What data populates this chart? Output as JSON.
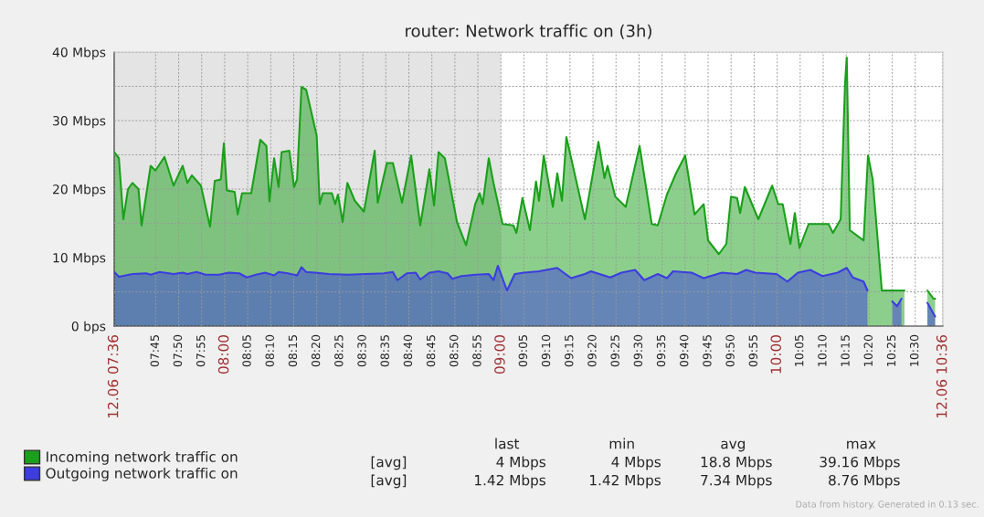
{
  "chart_data": {
    "type": "area",
    "title": "router: Network traffic on (3h)",
    "xlim": [
      7.6,
      10.6
    ],
    "ylim": [
      0,
      40
    ],
    "xticks": [
      {
        "value": 7.6,
        "label": "12.06 07:36"
      },
      {
        "value": 7.75,
        "label": "07:45"
      },
      {
        "value": 7.8333,
        "label": "07:50"
      },
      {
        "value": 7.9167,
        "label": "07:55"
      },
      {
        "value": 8,
        "label": "08:00"
      },
      {
        "value": 8.0833,
        "label": "08:05"
      },
      {
        "value": 8.1667,
        "label": "08:10"
      },
      {
        "value": 8.25,
        "label": "08:15"
      },
      {
        "value": 8.3333,
        "label": "08:20"
      },
      {
        "value": 8.4167,
        "label": "08:25"
      },
      {
        "value": 8.5,
        "label": "08:30"
      },
      {
        "value": 8.5833,
        "label": "08:35"
      },
      {
        "value": 8.6667,
        "label": "08:40"
      },
      {
        "value": 8.75,
        "label": "08:45"
      },
      {
        "value": 8.8333,
        "label": "08:50"
      },
      {
        "value": 8.9167,
        "label": "08:55"
      },
      {
        "value": 9,
        "label": "09:00"
      },
      {
        "value": 9.0833,
        "label": "09:05"
      },
      {
        "value": 9.1667,
        "label": "09:10"
      },
      {
        "value": 9.25,
        "label": "09:15"
      },
      {
        "value": 9.3333,
        "label": "09:20"
      },
      {
        "value": 9.4167,
        "label": "09:25"
      },
      {
        "value": 9.5,
        "label": "09:30"
      },
      {
        "value": 9.5833,
        "label": "09:35"
      },
      {
        "value": 9.6667,
        "label": "09:40"
      },
      {
        "value": 9.75,
        "label": "09:45"
      },
      {
        "value": 9.8333,
        "label": "09:50"
      },
      {
        "value": 9.9167,
        "label": "09:55"
      },
      {
        "value": 10,
        "label": "10:00"
      },
      {
        "value": 10.0833,
        "label": "10:05"
      },
      {
        "value": 10.1667,
        "label": "10:10"
      },
      {
        "value": 10.25,
        "label": "10:15"
      },
      {
        "value": 10.3333,
        "label": "10:20"
      },
      {
        "value": 10.4167,
        "label": "10:25"
      },
      {
        "value": 10.5,
        "label": "10:30"
      },
      {
        "value": 10.6,
        "label": "12.06 10:36"
      }
    ],
    "yticks": [
      {
        "value": 0,
        "label": "0 bps"
      },
      {
        "value": 5,
        "label": null
      },
      {
        "value": 10,
        "label": "10 Mbps"
      },
      {
        "value": 15,
        "label": null
      },
      {
        "value": 20,
        "label": "20 Mbps"
      },
      {
        "value": 25,
        "label": null
      },
      {
        "value": 30,
        "label": "30 Mbps"
      },
      {
        "value": 35,
        "label": null
      },
      {
        "value": 40,
        "label": "40 Mbps"
      }
    ],
    "grid": true,
    "legend": "bottom",
    "bands": [
      {
        "axis": "x",
        "from": 7.6,
        "to": 9.0,
        "color": "#e4e4e4"
      }
    ],
    "series": [
      {
        "name": "Incoming network traffic on",
        "color": "#1aa01a",
        "x": [
          7.6,
          7.617,
          7.633,
          7.65,
          7.666,
          7.688,
          7.699,
          7.732,
          7.749,
          7.782,
          7.815,
          7.848,
          7.865,
          7.881,
          7.914,
          7.947,
          7.964,
          7.986,
          7.997,
          8.008,
          8.036,
          8.047,
          8.063,
          8.096,
          8.129,
          8.151,
          8.162,
          8.179,
          8.195,
          8.206,
          8.234,
          8.251,
          8.262,
          8.278,
          8.295,
          8.333,
          8.344,
          8.355,
          8.388,
          8.4,
          8.41,
          8.427,
          8.444,
          8.471,
          8.504,
          8.543,
          8.554,
          8.587,
          8.609,
          8.642,
          8.675,
          8.708,
          8.741,
          8.758,
          8.774,
          8.797,
          8.841,
          8.874,
          8.907,
          8.923,
          8.934,
          8.956,
          8.973,
          9.006,
          9.045,
          9.056,
          9.078,
          9.105,
          9.127,
          9.138,
          9.155,
          9.188,
          9.204,
          9.221,
          9.237,
          9.304,
          9.353,
          9.375,
          9.386,
          9.414,
          9.452,
          9.502,
          9.546,
          9.568,
          9.601,
          9.634,
          9.667,
          9.701,
          9.734,
          9.75,
          9.789,
          9.816,
          9.833,
          9.855,
          9.866,
          9.883,
          9.932,
          9.982,
          10.004,
          10.02,
          10.048,
          10.064,
          10.081,
          10.114,
          10.186,
          10.202,
          10.23,
          10.246,
          10.252,
          10.263,
          10.313,
          10.329,
          10.346,
          10.379,
          10.461,
          10.5,
          10.544,
          10.566,
          10.572
        ],
        "values": [
          25.4,
          24.5,
          15.6,
          20.0,
          20.9,
          20.0,
          14.7,
          23.4,
          22.7,
          24.7,
          20.5,
          23.4,
          20.9,
          22.0,
          20.5,
          14.5,
          21.2,
          21.4,
          26.7,
          19.8,
          19.6,
          16.3,
          19.4,
          19.4,
          27.2,
          26.3,
          18.2,
          24.5,
          20.3,
          25.4,
          25.6,
          20.3,
          21.4,
          34.9,
          34.5,
          27.8,
          17.8,
          19.4,
          19.4,
          17.8,
          19.2,
          15.2,
          20.9,
          18.3,
          16.7,
          25.6,
          18.0,
          23.8,
          23.8,
          18.0,
          24.9,
          14.7,
          22.9,
          17.6,
          25.4,
          24.5,
          15.2,
          11.8,
          17.8,
          19.4,
          17.8,
          24.5,
          20.9,
          14.9,
          14.7,
          13.6,
          18.7,
          14.0,
          21.1,
          18.3,
          24.9,
          17.4,
          22.3,
          18.3,
          27.6,
          15.6,
          26.9,
          21.6,
          23.4,
          18.9,
          17.4,
          26.3,
          14.9,
          14.7,
          19.2,
          22.3,
          24.9,
          16.3,
          17.8,
          12.5,
          10.5,
          12.0,
          18.9,
          18.7,
          16.5,
          20.3,
          15.6,
          20.5,
          17.8,
          17.8,
          12.0,
          16.5,
          11.4,
          14.9,
          14.9,
          13.6,
          15.6,
          35.6,
          39.2,
          14.0,
          12.5,
          24.9,
          21.4,
          5.2,
          5.2,
          null,
          5.2,
          4.0,
          4.0
        ]
      },
      {
        "name": "Outgoing network traffic on",
        "color": "#3c3ce0",
        "x": [
          7.6,
          7.617,
          7.666,
          7.716,
          7.732,
          7.765,
          7.815,
          7.848,
          7.865,
          7.898,
          7.931,
          7.98,
          8.014,
          8.053,
          8.08,
          8.113,
          8.146,
          8.179,
          8.195,
          8.229,
          8.262,
          8.278,
          8.295,
          8.328,
          8.377,
          8.444,
          8.51,
          8.576,
          8.609,
          8.625,
          8.659,
          8.692,
          8.708,
          8.741,
          8.774,
          8.807,
          8.824,
          8.857,
          8.907,
          8.956,
          8.973,
          8.989,
          9.022,
          9.05,
          9.083,
          9.138,
          9.204,
          9.254,
          9.304,
          9.326,
          9.396,
          9.436,
          9.486,
          9.519,
          9.568,
          9.601,
          9.623,
          9.69,
          9.734,
          9.8,
          9.855,
          9.888,
          9.921,
          9.998,
          10.037,
          10.075,
          10.12,
          10.164,
          10.219,
          10.252,
          10.274,
          10.313,
          10.327,
          10.35,
          10.417,
          10.434,
          10.45,
          10.5,
          10.544,
          10.566,
          10.572
        ],
        "values": [
          7.9,
          7.2,
          7.6,
          7.7,
          7.5,
          7.9,
          7.6,
          7.8,
          7.6,
          7.9,
          7.5,
          7.5,
          7.8,
          7.7,
          7.1,
          7.5,
          7.8,
          7.4,
          7.9,
          7.7,
          7.4,
          8.6,
          7.9,
          7.8,
          7.6,
          7.5,
          7.6,
          7.7,
          7.9,
          6.7,
          7.7,
          7.8,
          6.8,
          7.8,
          8.0,
          7.7,
          6.9,
          7.3,
          7.5,
          7.6,
          6.7,
          8.8,
          5.2,
          7.6,
          7.8,
          8.0,
          8.5,
          7.0,
          7.6,
          8.0,
          7.1,
          7.8,
          8.2,
          6.7,
          7.6,
          7.0,
          8.0,
          7.8,
          7.0,
          7.8,
          7.6,
          8.2,
          7.8,
          7.6,
          6.5,
          7.8,
          8.2,
          7.3,
          7.8,
          8.5,
          7.1,
          6.5,
          5.2,
          null,
          3.6,
          2.9,
          4.0,
          null,
          3.4,
          1.8,
          1.4
        ]
      }
    ],
    "annotations": [
      "last",
      "min",
      "avg",
      "max",
      "[avg]",
      "4 Mbps",
      "4 Mbps",
      "18.8 Mbps",
      "39.16 Mbps",
      "[avg]",
      "1.42 Mbps",
      "1.42 Mbps",
      "7.34 Mbps",
      "8.76 Mbps",
      "Data from history. Generated in 0.13 sec."
    ]
  }
}
